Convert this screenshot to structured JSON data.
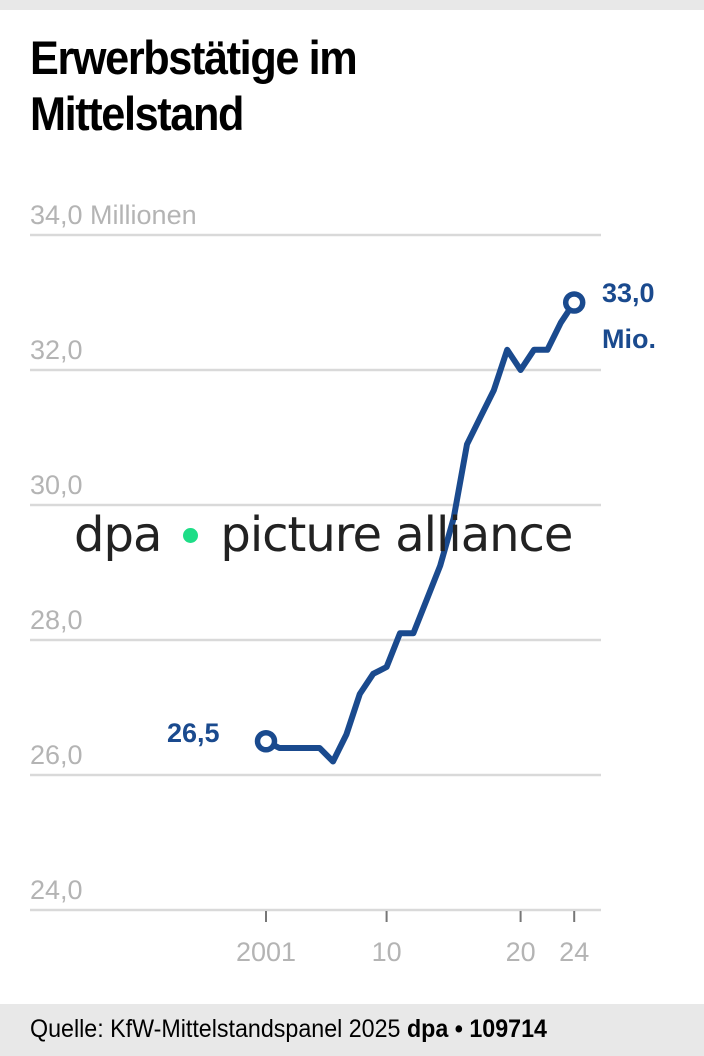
{
  "title": "Erwerbstätige im Mittelstand",
  "title_lines": [
    "Erwerbstätige im",
    "Mittelstand"
  ],
  "watermark": {
    "left": "dpa",
    "right": "picture alliance",
    "dot_color": "#1edd87"
  },
  "footer": {
    "source": "Quelle: KfW-Mittelstandspanel 2025",
    "agency": "dpa",
    "separator": "•",
    "graphic_id": "109714"
  },
  "colors": {
    "line": "#1a4a8e",
    "grid": "#d9d9d9",
    "axis_text": "#b4b4b4",
    "footer_bg": "#e8e8e8"
  },
  "annotations": {
    "start_value": "26,5",
    "end_value": "33,0",
    "end_unit": "Mio."
  },
  "chart_data": {
    "type": "line",
    "title": "Erwerbstätige im Mittelstand",
    "xlabel": "",
    "ylabel": "Millionen",
    "ylim": [
      24.0,
      34.0
    ],
    "grid": true,
    "legend": null,
    "y_ticks": [
      {
        "value": 34.0,
        "label": "34,0 Millionen"
      },
      {
        "value": 32.0,
        "label": "32,0"
      },
      {
        "value": 30.0,
        "label": "30,0"
      },
      {
        "value": 28.0,
        "label": "28,0"
      },
      {
        "value": 26.0,
        "label": "26,0"
      },
      {
        "value": 24.0,
        "label": "24,0"
      }
    ],
    "x_ticks": [
      {
        "value": 2001,
        "label": "2001"
      },
      {
        "value": 2010,
        "label": "10"
      },
      {
        "value": 2020,
        "label": "20"
      },
      {
        "value": 2024,
        "label": "24"
      }
    ],
    "x": [
      2001,
      2002,
      2003,
      2004,
      2005,
      2006,
      2007,
      2008,
      2009,
      2010,
      2011,
      2012,
      2013,
      2014,
      2015,
      2016,
      2017,
      2018,
      2019,
      2020,
      2021,
      2022,
      2023,
      2024
    ],
    "series": [
      {
        "name": "Erwerbstätige im Mittelstand (Mio.)",
        "values": [
          26.5,
          26.4,
          26.4,
          26.4,
          26.4,
          26.2,
          26.6,
          27.2,
          27.5,
          27.6,
          28.1,
          28.1,
          28.6,
          29.1,
          29.8,
          30.9,
          31.3,
          31.7,
          32.3,
          32.0,
          32.3,
          32.3,
          32.7,
          33.0
        ]
      }
    ],
    "annotations": [
      {
        "x": 2001,
        "y": 26.5,
        "text": "26,5"
      },
      {
        "x": 2024,
        "y": 33.0,
        "text": "33,0 Mio."
      }
    ]
  }
}
